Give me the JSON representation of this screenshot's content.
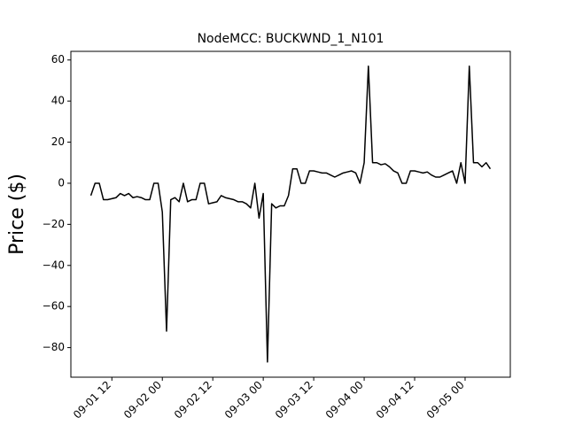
{
  "chart_data": {
    "type": "line",
    "title": "NodeMCC: BUCKWND_1_N101",
    "y_label": "Price ($)",
    "x": [
      "09-01 07",
      "09-01 08",
      "09-01 09",
      "09-01 10",
      "09-01 11",
      "09-01 12",
      "09-01 13",
      "09-01 14",
      "09-01 15",
      "09-01 16",
      "09-01 17",
      "09-01 18",
      "09-01 19",
      "09-01 20",
      "09-01 21",
      "09-01 22",
      "09-01 23",
      "09-02 00",
      "09-02 01",
      "09-02 02",
      "09-02 03",
      "09-02 04",
      "09-02 05",
      "09-02 06",
      "09-02 07",
      "09-02 08",
      "09-02 09",
      "09-02 10",
      "09-02 11",
      "09-02 12",
      "09-02 13",
      "09-02 14",
      "09-02 15",
      "09-02 16",
      "09-02 17",
      "09-02 18",
      "09-02 19",
      "09-02 20",
      "09-02 21",
      "09-02 22",
      "09-02 23",
      "09-03 00",
      "09-03 01",
      "09-03 02",
      "09-03 03",
      "09-03 04",
      "09-03 05",
      "09-03 06",
      "09-03 07",
      "09-03 08",
      "09-03 09",
      "09-03 10",
      "09-03 11",
      "09-03 12",
      "09-03 13",
      "09-03 14",
      "09-03 15",
      "09-03 16",
      "09-03 17",
      "09-03 18",
      "09-03 19",
      "09-03 20",
      "09-03 21",
      "09-03 22",
      "09-03 23",
      "09-04 00",
      "09-04 01",
      "09-04 02",
      "09-04 03",
      "09-04 04",
      "09-04 05",
      "09-04 06",
      "09-04 07",
      "09-04 08",
      "09-04 09",
      "09-04 10",
      "09-04 11",
      "09-04 12",
      "09-04 13",
      "09-04 14",
      "09-04 15",
      "09-04 16",
      "09-04 17",
      "09-04 18",
      "09-04 19",
      "09-04 20",
      "09-04 21",
      "09-04 22",
      "09-04 23",
      "09-05 00",
      "09-05 01",
      "09-05 02",
      "09-05 03",
      "09-05 04",
      "09-05 05",
      "09-05 06"
    ],
    "series": [
      {
        "color": "#000000",
        "values": [
          -6,
          0,
          0,
          -8,
          -8,
          -7.5,
          -7,
          -5,
          -6,
          -5,
          -7,
          -6.5,
          -7,
          -8,
          -8,
          0,
          0,
          -14,
          -72,
          -8,
          -7,
          -9,
          0,
          -9,
          -8,
          -8,
          0,
          0,
          -10,
          -9.5,
          -9,
          -6,
          -7,
          -7.5,
          -8,
          -9,
          -9,
          -10,
          -12,
          0,
          -17,
          -5,
          -87,
          -10,
          -12,
          -11,
          -11,
          -6,
          7,
          7,
          0,
          0,
          6,
          6,
          5.5,
          5,
          5,
          4,
          3,
          4,
          5,
          5.5,
          6,
          5,
          0,
          10,
          57,
          10,
          10,
          9,
          9.5,
          8,
          6,
          5,
          0,
          0,
          6,
          6,
          5.5,
          5,
          5.5,
          4,
          3,
          3,
          4,
          5,
          6,
          0,
          10,
          0,
          57,
          10,
          10,
          8,
          10,
          7
        ]
      }
    ],
    "ylim": [
      -94.4,
      64.2
    ],
    "yticks": [
      {
        "value": -80,
        "label": "−80"
      },
      {
        "value": -60,
        "label": "−60"
      },
      {
        "value": -40,
        "label": "−40"
      },
      {
        "value": -20,
        "label": "−20"
      },
      0,
      20,
      40,
      60
    ],
    "xticks": [
      "09-01 12",
      "09-02 00",
      "09-02 12",
      "09-03 00",
      "09-03 12",
      "09-04 00",
      "09-04 12",
      "09-05 00"
    ],
    "grid": false
  }
}
